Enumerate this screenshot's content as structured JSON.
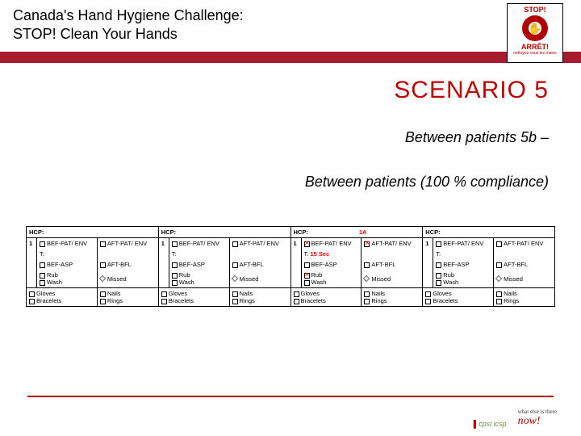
{
  "colors": {
    "brand_red": "#a61c2e",
    "scenario_red": "#c00000",
    "highlight_red": "#ff0000",
    "footer_red": "#b00000",
    "black": "#000000"
  },
  "header": {
    "title_line1": "Canada's Hand Hygiene Challenge:",
    "title_line2": "STOP! Clean Your Hands"
  },
  "badge": {
    "top": "STOP!",
    "mid": "ARRÊT!",
    "hand_glyph": "✋"
  },
  "scenario": {
    "title": "SCENARIO 5",
    "subtitle1": "Between patients 5b –",
    "subtitle2": "Between patients  (100 % compliance)"
  },
  "form": {
    "labels": {
      "hcp": "HCP:",
      "num": "1",
      "bef_pat_env": "BEF-PAT/\nENV",
      "aft_pat_env": "AFT-PAT/\nENV",
      "t": "T:",
      "bef_asp": "BEF-ASP",
      "aft_bfl": "AFT-BFL",
      "rub": "Rub",
      "wash": "Wash",
      "missed": "Missed",
      "gloves": "Gloves",
      "bracelets": "Bracelets",
      "nails": "Nails",
      "rings": "Rings"
    },
    "panels": [
      {
        "hcp_value": "",
        "highlight": false,
        "bef_checked": false,
        "aft_checked": false,
        "t_value": "",
        "rub_checked": false
      },
      {
        "hcp_value": "",
        "highlight": false,
        "bef_checked": false,
        "aft_checked": false,
        "t_value": "",
        "rub_checked": false
      },
      {
        "hcp_value": "1A",
        "highlight": true,
        "bef_checked": true,
        "aft_checked": true,
        "t_value": "15 Sec",
        "rub_checked": true
      },
      {
        "hcp_value": "",
        "highlight": false,
        "bef_checked": false,
        "aft_checked": false,
        "t_value": "",
        "rub_checked": false
      }
    ]
  },
  "footer": {
    "cpsi_text": "cpsi icsp",
    "now_small": "what else is there",
    "now_text": "now!"
  }
}
